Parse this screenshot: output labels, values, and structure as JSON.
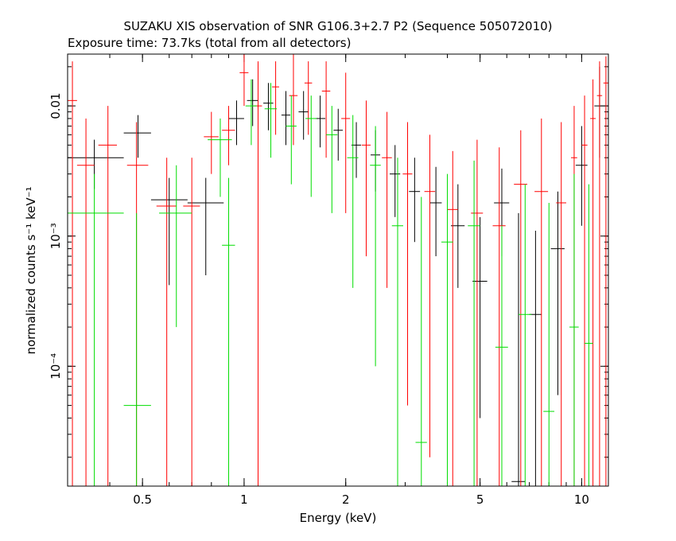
{
  "chart_data": {
    "type": "scatter",
    "title": "SUZAKU XIS observation of SNR G106.3+2.7 P2 (Sequence 505072010)",
    "subtitle": "Exposure time: 73.7ks (total from all detectors)",
    "xlabel": "Energy (keV)",
    "ylabel": "normalized counts s⁻¹ keV⁻¹",
    "xscale": "log",
    "yscale": "log",
    "xlim": [
      0.3,
      12.0
    ],
    "ylim": [
      1.2e-05,
      0.025
    ],
    "x_ticks": [
      {
        "value": 0.5,
        "label": "0.5"
      },
      {
        "value": 1,
        "label": "1"
      },
      {
        "value": 2,
        "label": "2"
      },
      {
        "value": 5,
        "label": "5"
      },
      {
        "value": 10,
        "label": "10"
      }
    ],
    "y_ticks": [
      {
        "value": 0.0001,
        "label": "10⁻⁴"
      },
      {
        "value": 0.001,
        "label": "10⁻³"
      },
      {
        "value": 0.01,
        "label": "0.01"
      }
    ],
    "grid": false,
    "legend": "none",
    "series": [
      {
        "color": "#000000",
        "points": [
          {
            "x": 0.36,
            "xlo": 0.3,
            "xhi": 0.44,
            "y": 0.004,
            "ylo": 0.0023,
            "yhi": 0.0055
          },
          {
            "x": 0.485,
            "xlo": 0.44,
            "xhi": 0.53,
            "y": 0.0062,
            "ylo": 0.004,
            "yhi": 0.0085
          },
          {
            "x": 0.6,
            "xlo": 0.53,
            "xhi": 0.68,
            "y": 0.0019,
            "ylo": 0.00042,
            "yhi": 0.0028
          },
          {
            "x": 0.77,
            "xlo": 0.68,
            "xhi": 0.87,
            "y": 0.0018,
            "ylo": 0.0005,
            "yhi": 0.0028
          },
          {
            "x": 0.95,
            "xlo": 0.9,
            "xhi": 1.0,
            "y": 0.008,
            "ylo": 0.005,
            "yhi": 0.011
          },
          {
            "x": 1.06,
            "xlo": 1.02,
            "xhi": 1.1,
            "y": 0.011,
            "ylo": 0.007,
            "yhi": 0.016
          },
          {
            "x": 1.18,
            "xlo": 1.14,
            "xhi": 1.22,
            "y": 0.0105,
            "ylo": 0.0065,
            "yhi": 0.015
          },
          {
            "x": 1.33,
            "xlo": 1.29,
            "xhi": 1.37,
            "y": 0.0085,
            "ylo": 0.005,
            "yhi": 0.013
          },
          {
            "x": 1.5,
            "xlo": 1.45,
            "xhi": 1.55,
            "y": 0.009,
            "ylo": 0.0055,
            "yhi": 0.013
          },
          {
            "x": 1.68,
            "xlo": 1.62,
            "xhi": 1.74,
            "y": 0.008,
            "ylo": 0.0048,
            "yhi": 0.012
          },
          {
            "x": 1.9,
            "xlo": 1.84,
            "xhi": 1.96,
            "y": 0.0065,
            "ylo": 0.0038,
            "yhi": 0.0095
          },
          {
            "x": 2.15,
            "xlo": 2.08,
            "xhi": 2.22,
            "y": 0.005,
            "ylo": 0.0028,
            "yhi": 0.0075
          },
          {
            "x": 2.45,
            "xlo": 2.37,
            "xhi": 2.53,
            "y": 0.0042,
            "ylo": 0.0022,
            "yhi": 0.0065
          },
          {
            "x": 2.8,
            "xlo": 2.7,
            "xhi": 2.9,
            "y": 0.003,
            "ylo": 0.0014,
            "yhi": 0.005
          },
          {
            "x": 3.2,
            "xlo": 3.08,
            "xhi": 3.32,
            "y": 0.0022,
            "ylo": 0.0009,
            "yhi": 0.004
          },
          {
            "x": 3.7,
            "xlo": 3.55,
            "xhi": 3.85,
            "y": 0.0018,
            "ylo": 0.0007,
            "yhi": 0.0034
          },
          {
            "x": 4.3,
            "xlo": 4.1,
            "xhi": 4.5,
            "y": 0.0012,
            "ylo": 0.0004,
            "yhi": 0.0025
          },
          {
            "x": 5.0,
            "xlo": 4.75,
            "xhi": 5.25,
            "y": 0.00045,
            "ylo": 4e-05,
            "yhi": 0.0014
          },
          {
            "x": 5.8,
            "xlo": 5.5,
            "xhi": 6.1,
            "y": 0.0018,
            "ylo": 0.0007,
            "yhi": 0.0033
          },
          {
            "x": 6.5,
            "xlo": 6.2,
            "xhi": 6.8,
            "y": 1.3e-05,
            "ylo": 1.2e-05,
            "yhi": 0.0015
          },
          {
            "x": 7.3,
            "xlo": 7.0,
            "xhi": 7.6,
            "y": 0.00025,
            "ylo": 1.2e-05,
            "yhi": 0.0011
          },
          {
            "x": 8.5,
            "xlo": 8.1,
            "xhi": 8.9,
            "y": 0.0008,
            "ylo": 6e-05,
            "yhi": 0.0022
          },
          {
            "x": 10.0,
            "xlo": 9.6,
            "xhi": 10.4,
            "y": 0.0035,
            "ylo": 0.0012,
            "yhi": 0.007
          },
          {
            "x": 11.3,
            "xlo": 10.9,
            "xhi": 11.7,
            "y": 0.01,
            "ylo": 0.004,
            "yhi": 0.02
          }
        ]
      },
      {
        "color": "#ff0000",
        "points": [
          {
            "x": 0.31,
            "xlo": 0.3,
            "xhi": 0.32,
            "y": 0.011,
            "ylo": 1.2e-05,
            "yhi": 0.022
          },
          {
            "x": 0.34,
            "xlo": 0.32,
            "xhi": 0.36,
            "y": 0.0035,
            "ylo": 1.2e-05,
            "yhi": 0.008
          },
          {
            "x": 0.395,
            "xlo": 0.37,
            "xhi": 0.42,
            "y": 0.005,
            "ylo": 1.2e-05,
            "yhi": 0.01
          },
          {
            "x": 0.48,
            "xlo": 0.45,
            "xhi": 0.52,
            "y": 0.0035,
            "ylo": 1.2e-05,
            "yhi": 0.0075
          },
          {
            "x": 0.59,
            "xlo": 0.55,
            "xhi": 0.63,
            "y": 0.0017,
            "ylo": 1.2e-05,
            "yhi": 0.004
          },
          {
            "x": 0.7,
            "xlo": 0.66,
            "xhi": 0.74,
            "y": 0.0017,
            "ylo": 1.2e-05,
            "yhi": 0.004
          },
          {
            "x": 0.8,
            "xlo": 0.76,
            "xhi": 0.84,
            "y": 0.0058,
            "ylo": 0.003,
            "yhi": 0.009
          },
          {
            "x": 0.9,
            "xlo": 0.86,
            "xhi": 0.94,
            "y": 0.0065,
            "ylo": 0.0035,
            "yhi": 0.01
          },
          {
            "x": 1.0,
            "xlo": 0.97,
            "xhi": 1.03,
            "y": 0.018,
            "ylo": 0.01,
            "yhi": 0.025
          },
          {
            "x": 1.1,
            "xlo": 1.07,
            "xhi": 1.13,
            "y": 0.01,
            "ylo": 1.2e-05,
            "yhi": 0.022
          },
          {
            "x": 1.24,
            "xlo": 1.21,
            "xhi": 1.27,
            "y": 0.014,
            "ylo": 0.006,
            "yhi": 0.022
          },
          {
            "x": 1.4,
            "xlo": 1.36,
            "xhi": 1.44,
            "y": 0.012,
            "ylo": 0.005,
            "yhi": 0.025
          },
          {
            "x": 1.55,
            "xlo": 1.51,
            "xhi": 1.59,
            "y": 0.015,
            "ylo": 0.006,
            "yhi": 0.022
          },
          {
            "x": 1.75,
            "xlo": 1.7,
            "xhi": 1.8,
            "y": 0.013,
            "ylo": 0.004,
            "yhi": 0.022
          },
          {
            "x": 2.0,
            "xlo": 1.94,
            "xhi": 2.06,
            "y": 0.008,
            "ylo": 0.0015,
            "yhi": 0.018
          },
          {
            "x": 2.3,
            "xlo": 2.23,
            "xhi": 2.37,
            "y": 0.005,
            "ylo": 0.0007,
            "yhi": 0.011
          },
          {
            "x": 2.65,
            "xlo": 2.56,
            "xhi": 2.74,
            "y": 0.004,
            "ylo": 0.0004,
            "yhi": 0.009
          },
          {
            "x": 3.05,
            "xlo": 2.95,
            "xhi": 3.15,
            "y": 0.003,
            "ylo": 5e-05,
            "yhi": 0.0075
          },
          {
            "x": 3.55,
            "xlo": 3.42,
            "xhi": 3.68,
            "y": 0.0022,
            "ylo": 2e-05,
            "yhi": 0.006
          },
          {
            "x": 4.15,
            "xlo": 4.0,
            "xhi": 4.3,
            "y": 0.0016,
            "ylo": 1.2e-05,
            "yhi": 0.0045
          },
          {
            "x": 4.9,
            "xlo": 4.7,
            "xhi": 5.1,
            "y": 0.0015,
            "ylo": 1.2e-05,
            "yhi": 0.0055
          },
          {
            "x": 5.7,
            "xlo": 5.45,
            "xhi": 5.95,
            "y": 0.0012,
            "ylo": 1.2e-05,
            "yhi": 0.0048
          },
          {
            "x": 6.6,
            "xlo": 6.3,
            "xhi": 6.9,
            "y": 0.0025,
            "ylo": 1.2e-05,
            "yhi": 0.0065
          },
          {
            "x": 7.6,
            "xlo": 7.25,
            "xhi": 7.95,
            "y": 0.0022,
            "ylo": 1.2e-05,
            "yhi": 0.008
          },
          {
            "x": 8.7,
            "xlo": 8.4,
            "xhi": 9.0,
            "y": 0.0018,
            "ylo": 1.2e-05,
            "yhi": 0.0075
          },
          {
            "x": 9.5,
            "xlo": 9.3,
            "xhi": 9.7,
            "y": 0.004,
            "ylo": 1.2e-05,
            "yhi": 0.01
          },
          {
            "x": 10.2,
            "xlo": 10.0,
            "xhi": 10.4,
            "y": 0.005,
            "ylo": 1.2e-05,
            "yhi": 0.012
          },
          {
            "x": 10.8,
            "xlo": 10.6,
            "xhi": 11.0,
            "y": 0.008,
            "ylo": 1.2e-05,
            "yhi": 0.016
          },
          {
            "x": 11.3,
            "xlo": 11.1,
            "xhi": 11.5,
            "y": 0.012,
            "ylo": 1.2e-05,
            "yhi": 0.022
          },
          {
            "x": 11.8,
            "xlo": 11.6,
            "xhi": 12.0,
            "y": 0.015,
            "ylo": 1.2e-05,
            "yhi": 0.024
          }
        ]
      },
      {
        "color": "#00dd00",
        "points": [
          {
            "x": 0.36,
            "xlo": 0.3,
            "xhi": 0.44,
            "y": 0.0015,
            "ylo": 1.2e-05,
            "yhi": 0.003
          },
          {
            "x": 0.48,
            "xlo": 0.44,
            "xhi": 0.53,
            "y": 5e-05,
            "ylo": 1.2e-05,
            "yhi": 0.0015
          },
          {
            "x": 0.63,
            "xlo": 0.56,
            "xhi": 0.7,
            "y": 0.0015,
            "ylo": 0.0002,
            "yhi": 0.0035
          },
          {
            "x": 0.85,
            "xlo": 0.78,
            "xhi": 0.92,
            "y": 0.0055,
            "ylo": 0.002,
            "yhi": 0.008
          },
          {
            "x": 0.9,
            "xlo": 0.86,
            "xhi": 0.94,
            "y": 0.00085,
            "ylo": 1.2e-05,
            "yhi": 0.0028
          },
          {
            "x": 1.05,
            "xlo": 1.01,
            "xhi": 1.09,
            "y": 0.01,
            "ylo": 0.005,
            "yhi": 0.016
          },
          {
            "x": 1.2,
            "xlo": 1.15,
            "xhi": 1.25,
            "y": 0.0095,
            "ylo": 0.004,
            "yhi": 0.015
          },
          {
            "x": 1.38,
            "xlo": 1.33,
            "xhi": 1.43,
            "y": 0.007,
            "ylo": 0.0025,
            "yhi": 0.012
          },
          {
            "x": 1.58,
            "xlo": 1.52,
            "xhi": 1.64,
            "y": 0.008,
            "ylo": 0.002,
            "yhi": 0.012
          },
          {
            "x": 1.82,
            "xlo": 1.75,
            "xhi": 1.89,
            "y": 0.006,
            "ylo": 0.0015,
            "yhi": 0.01
          },
          {
            "x": 2.1,
            "xlo": 2.02,
            "xhi": 2.18,
            "y": 0.004,
            "ylo": 0.0004,
            "yhi": 0.0085
          },
          {
            "x": 2.45,
            "xlo": 2.36,
            "xhi": 2.54,
            "y": 0.0035,
            "ylo": 0.0001,
            "yhi": 0.007
          },
          {
            "x": 2.85,
            "xlo": 2.74,
            "xhi": 2.96,
            "y": 0.0012,
            "ylo": 1.2e-05,
            "yhi": 0.004
          },
          {
            "x": 3.35,
            "xlo": 3.22,
            "xhi": 3.48,
            "y": 2.6e-05,
            "ylo": 1.2e-05,
            "yhi": 0.002
          },
          {
            "x": 4.0,
            "xlo": 3.84,
            "xhi": 4.16,
            "y": 0.0009,
            "ylo": 1.2e-05,
            "yhi": 0.003
          },
          {
            "x": 4.8,
            "xlo": 4.6,
            "xhi": 5.0,
            "y": 0.0012,
            "ylo": 1.2e-05,
            "yhi": 0.0038
          },
          {
            "x": 5.8,
            "xlo": 5.55,
            "xhi": 6.05,
            "y": 0.00014,
            "ylo": 1.2e-05,
            "yhi": 0.0012
          },
          {
            "x": 6.8,
            "xlo": 6.5,
            "xhi": 7.1,
            "y": 0.00025,
            "ylo": 1.2e-05,
            "yhi": 0.0025
          },
          {
            "x": 8.0,
            "xlo": 7.7,
            "xhi": 8.3,
            "y": 4.5e-05,
            "ylo": 1.2e-05,
            "yhi": 0.0018
          },
          {
            "x": 9.5,
            "xlo": 9.2,
            "xhi": 9.8,
            "y": 0.0002,
            "ylo": 1.2e-05,
            "yhi": 0.003
          },
          {
            "x": 10.5,
            "xlo": 10.2,
            "xhi": 10.8,
            "y": 0.00015,
            "ylo": 1.2e-05,
            "yhi": 0.0025
          }
        ]
      }
    ]
  }
}
